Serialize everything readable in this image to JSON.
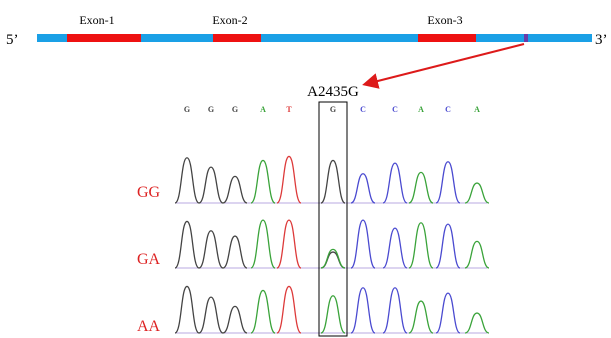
{
  "gene": {
    "five_prime": "5’",
    "three_prime": "3’",
    "exons": [
      "Exon-1",
      "Exon-2",
      "Exon-3"
    ],
    "colors": {
      "strand": "#1aa0e6",
      "exon": "#ee1111",
      "snp_mark": "#6a3aa8"
    }
  },
  "variant": {
    "label": "A2435G",
    "arrow_color": "#dd1a1a"
  },
  "sequence": {
    "bases": [
      "G",
      "G",
      "G",
      "A",
      "T",
      "G",
      "C",
      "C",
      "A",
      "C",
      "A"
    ],
    "base_colors": {
      "G": "#444444",
      "A": "#3aa33a",
      "T": "#dd3a3a",
      "C": "#4a4ad0"
    }
  },
  "genotypes": [
    "GG",
    "GA",
    "AA"
  ],
  "genotype_color": "#dd2222"
}
